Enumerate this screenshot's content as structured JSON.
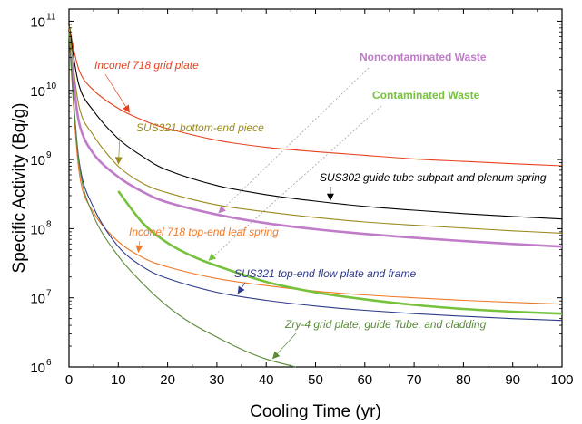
{
  "chart_data": {
    "type": "line",
    "xlabel": "Cooling Time (yr)",
    "ylabel": "Specific Activity (Bq/g)",
    "xlim": [
      0,
      100
    ],
    "ylim": [
      1000000,
      150000000000
    ],
    "yscale": "log",
    "x_ticks": [
      "0",
      "10",
      "20",
      "30",
      "40",
      "50",
      "60",
      "70",
      "80",
      "90",
      "100"
    ],
    "y_ticks": [
      {
        "base": "10",
        "exp": "6",
        "value": 1000000
      },
      {
        "base": "10",
        "exp": "7",
        "value": 10000000
      },
      {
        "base": "10",
        "exp": "8",
        "value": 100000000
      },
      {
        "base": "10",
        "exp": "9",
        "value": 1000000000
      },
      {
        "base": "10",
        "exp": "10",
        "value": 10000000000
      },
      {
        "base": "10",
        "exp": "11",
        "value": 100000000000
      }
    ],
    "grid": false,
    "series": [
      {
        "name": "Inconel 718 grid plate",
        "color": "#e8411f",
        "width": 1.1,
        "x": [
          0,
          2,
          5,
          10,
          15,
          20,
          30,
          40,
          50,
          60,
          70,
          80,
          90,
          100
        ],
        "y": [
          90000000000,
          20000000000,
          10000000000,
          5500000000,
          3700000000,
          2800000000,
          1900000000,
          1500000000,
          1300000000,
          1150000000,
          1020000000,
          940000000,
          870000000,
          810000000
        ]
      },
      {
        "name": "SUS302 guide tube subpart and plenum spring",
        "color": "#000000",
        "width": 1.1,
        "x": [
          0,
          2,
          5,
          10,
          15,
          20,
          30,
          40,
          50,
          60,
          70,
          80,
          90,
          100
        ],
        "y": [
          90000000000,
          12000000000,
          5000000000,
          2000000000,
          1100000000,
          700000000,
          420000000,
          310000000,
          250000000,
          210000000,
          185000000,
          165000000,
          150000000,
          138000000
        ]
      },
      {
        "name": "SUS321 bottom-end piece",
        "color": "#9a8a1c",
        "width": 1.1,
        "x": [
          0,
          2,
          5,
          10,
          15,
          20,
          30,
          40,
          50,
          60,
          70,
          80,
          90,
          100
        ],
        "y": [
          85000000000,
          6000000000,
          2200000000,
          800000000,
          450000000,
          330000000,
          220000000,
          175000000,
          145000000,
          125000000,
          112000000,
          102000000,
          93000000,
          86000000
        ]
      },
      {
        "name": "Noncontaminated Waste",
        "color": "#c07cc8",
        "width": 2.6,
        "x": [
          0.5,
          2,
          5,
          10,
          15,
          20,
          30,
          40,
          50,
          60,
          70,
          80,
          90,
          100
        ],
        "y": [
          30000000000,
          3500000000,
          1200000000,
          560000000,
          340000000,
          240000000,
          160000000,
          120000000,
          98000000,
          84000000,
          74000000,
          66000000,
          60000000,
          55000000
        ]
      },
      {
        "name": "Inconel 718 top-end leaf spring",
        "color": "#f07a28",
        "width": 1.1,
        "x": [
          0,
          2,
          5,
          10,
          15,
          20,
          30,
          40,
          50,
          60,
          70,
          80,
          90,
          100
        ],
        "y": [
          70000000000,
          700000000,
          170000000,
          65000000,
          38000000,
          28000000,
          19000000,
          15000000,
          12500000,
          11000000,
          10000000,
          9200000,
          8600000,
          8100000
        ]
      },
      {
        "name": "SUS321 top-end flow plate and frame",
        "color": "#2e3a8a",
        "width": 1.1,
        "x": [
          0,
          2,
          5,
          10,
          15,
          20,
          30,
          40,
          50,
          60,
          70,
          80,
          90,
          100
        ],
        "y": [
          70000000000,
          1000000000,
          200000000,
          55000000,
          28000000,
          19000000,
          12000000,
          9200000,
          7600000,
          6600000,
          5900000,
          5400000,
          5000000,
          4700000
        ]
      },
      {
        "name": "Contaminated Waste",
        "color": "#77c23c",
        "width": 2.6,
        "x": [
          10,
          15,
          20,
          25,
          30,
          40,
          50,
          60,
          70,
          80,
          90,
          100
        ],
        "y": [
          350000000,
          120000000,
          62000000,
          40000000,
          29000000,
          17000000,
          12000000,
          9500000,
          7900000,
          6900000,
          6300000,
          5900000
        ]
      },
      {
        "name": "Zry-4 grid plate, guide Tube, and cladding",
        "color": "#5a8a3a",
        "width": 1.1,
        "x": [
          0,
          2,
          5,
          10,
          15,
          20,
          25,
          30,
          35,
          40,
          46
        ],
        "y": [
          70000000000,
          900000000,
          150000000,
          40000000,
          16000000,
          7500000,
          4200000,
          2700000,
          1800000,
          1300000,
          1000000
        ]
      }
    ],
    "annotations": [
      {
        "text": "Inconel 718 grid plate",
        "color": "#e8411f",
        "style": "italic",
        "series": 0,
        "at_x": 12.5
      },
      {
        "text": "SUS321 bottom-end piece",
        "color": "#9a8a1c",
        "style": "italic",
        "series": 2,
        "at_x": 10
      },
      {
        "text": "SUS302 guide tube subpart and plenum spring",
        "color": "#000000",
        "style": "italic",
        "series": 1,
        "at_x": 53
      },
      {
        "text": "Noncontaminated Waste",
        "color": "#c07cc8",
        "style": "bold",
        "series": 3,
        "at_x": 30
      },
      {
        "text": "Contaminated Waste",
        "color": "#77c23c",
        "style": "bold",
        "series": 6,
        "at_x": 28
      },
      {
        "text": "Inconel 718 top-end leaf spring",
        "color": "#f07a28",
        "style": "italic",
        "series": 4,
        "at_x": 14
      },
      {
        "text": "SUS321 top-end flow plate and frame",
        "color": "#2e3a8a",
        "style": "italic",
        "series": 5,
        "at_x": 34
      },
      {
        "text": "Zry-4 grid plate, guide Tube, and cladding",
        "color": "#5a8a3a",
        "style": "italic",
        "series": 7,
        "at_x": 41
      }
    ]
  }
}
